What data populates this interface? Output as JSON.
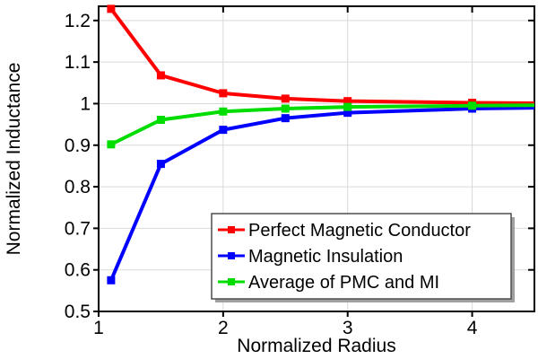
{
  "chart_data": {
    "type": "line",
    "title": "",
    "xlabel": "Normalized Radius",
    "ylabel": "Normalized Inductance",
    "xlim": [
      1,
      4.5
    ],
    "ylim": [
      0.5,
      1.2342
    ],
    "x_ticks": [
      1,
      2,
      3,
      4
    ],
    "x_tick_labels": [
      "1",
      "2",
      "3",
      "4"
    ],
    "y_ticks": [
      0.5,
      0.6,
      0.7,
      0.8,
      0.9,
      1.0,
      1.1,
      1.2
    ],
    "y_tick_labels": [
      "0.5",
      "0.6",
      "0.7",
      "0.8",
      "0.9",
      "1",
      "1.1",
      "1.2"
    ],
    "grid": true,
    "legend_position": "inside-bottom-right",
    "marker": "square",
    "x": [
      1.1,
      1.5,
      2,
      2.5,
      3,
      4,
      4.5
    ],
    "series": [
      {
        "name": "Perfect Magnetic Conductor",
        "id": "pmc",
        "color": "#ff0000",
        "values": [
          1.228,
          1.068,
          1.025,
          1.012,
          1.006,
          1.002,
          1.001
        ]
      },
      {
        "name": "Magnetic Insulation",
        "id": "mi",
        "color": "#0000ff",
        "values": [
          0.575,
          0.855,
          0.937,
          0.965,
          0.978,
          0.988,
          0.99
        ]
      },
      {
        "name": "Average of PMC and MI",
        "id": "avg",
        "color": "#00dd00",
        "values": [
          0.902,
          0.961,
          0.981,
          0.988,
          0.992,
          0.995,
          0.996
        ]
      }
    ],
    "colors": {
      "grid": "#d9d9d9",
      "axis": "#000000",
      "background": "#ffffff",
      "legend_border": "#4d4d4d",
      "legend_shadow": "#a0a0a0",
      "legend_background": "#ffffff"
    }
  }
}
